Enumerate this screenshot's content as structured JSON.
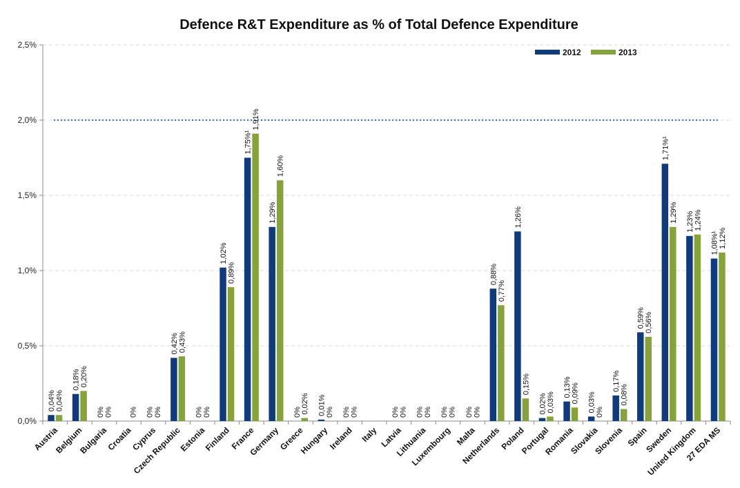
{
  "chart_data": {
    "type": "bar",
    "title": "Defence R&T Expenditure as % of Total Defence Expenditure",
    "xlabel": "",
    "ylabel": "",
    "ylim": [
      0,
      2.5
    ],
    "yticks": [
      "0,0%",
      "0,5%",
      "1,0%",
      "1,5%",
      "2,0%",
      "2,5%"
    ],
    "grid": true,
    "legend_position": "top-right",
    "reference_line": {
      "value": 2.0,
      "style": "dotted",
      "color": "#2E75B6"
    },
    "colors": {
      "2012": "#0F3A7D",
      "2013": "#86A33A",
      "axis": "#888888",
      "grid": "#D9D9D9"
    },
    "categories": [
      "Austria",
      "Belgium",
      "Bulgaria",
      "Croatia",
      "Cyprus",
      "Czech Republic",
      "Estonia",
      "Finland",
      "France",
      "Germany",
      "Greece",
      "Hungary",
      "Ireland",
      "Italy",
      "Latvia",
      "Lithuania",
      "Luxembourg",
      "Malta",
      "Netherlands",
      "Poland",
      "Portugal",
      "Romania",
      "Slovakia",
      "Slovenia",
      "Spain",
      "Sweden",
      "United Kingdom",
      "27 EDA MS"
    ],
    "series": [
      {
        "name": "2012",
        "values": [
          0.04,
          0.18,
          0,
          null,
          0,
          0.42,
          0,
          1.02,
          1.75,
          1.29,
          0,
          0.01,
          0,
          null,
          0,
          0,
          0,
          0,
          0.88,
          1.26,
          0.02,
          0.13,
          0.03,
          0.17,
          0.59,
          1.71,
          1.23,
          1.08
        ],
        "labels": [
          "0,04%",
          "0,18%",
          "0%",
          "",
          "0%",
          "0,42%",
          "0%",
          "1,02%",
          "1,75%¹",
          "1,29%",
          "0%",
          "0,01%",
          "0%",
          "",
          "0%",
          "0%",
          "0%",
          "0%",
          "0,88%",
          "1,26%",
          "0,02%",
          "0,13%",
          "0,03%",
          "0,17%",
          "0,59%",
          "1,71%¹",
          "1,23%",
          "1,08%¹"
        ]
      },
      {
        "name": "2013",
        "values": [
          0.04,
          0.2,
          0,
          0,
          0,
          0.43,
          0,
          0.89,
          1.91,
          1.6,
          0.02,
          0,
          0,
          null,
          0,
          0,
          0,
          0,
          0.77,
          0.15,
          0.03,
          0.09,
          0,
          0.08,
          0.56,
          1.29,
          1.24,
          1.12
        ],
        "labels": [
          "0,04%",
          "0,20%",
          "0%",
          "0%",
          "0%",
          "0,43%",
          "0%",
          "0,89%",
          "1,91%",
          "1,60%",
          "0,02%",
          "0%",
          "0%",
          "",
          "0%",
          "0%",
          "0%",
          "0%",
          "0,77%",
          "0,15%",
          "0,03%",
          "0,09%",
          "0%",
          "0,08%",
          "0,56%",
          "1,29%",
          "1,24%",
          "1,12%"
        ]
      }
    ]
  }
}
